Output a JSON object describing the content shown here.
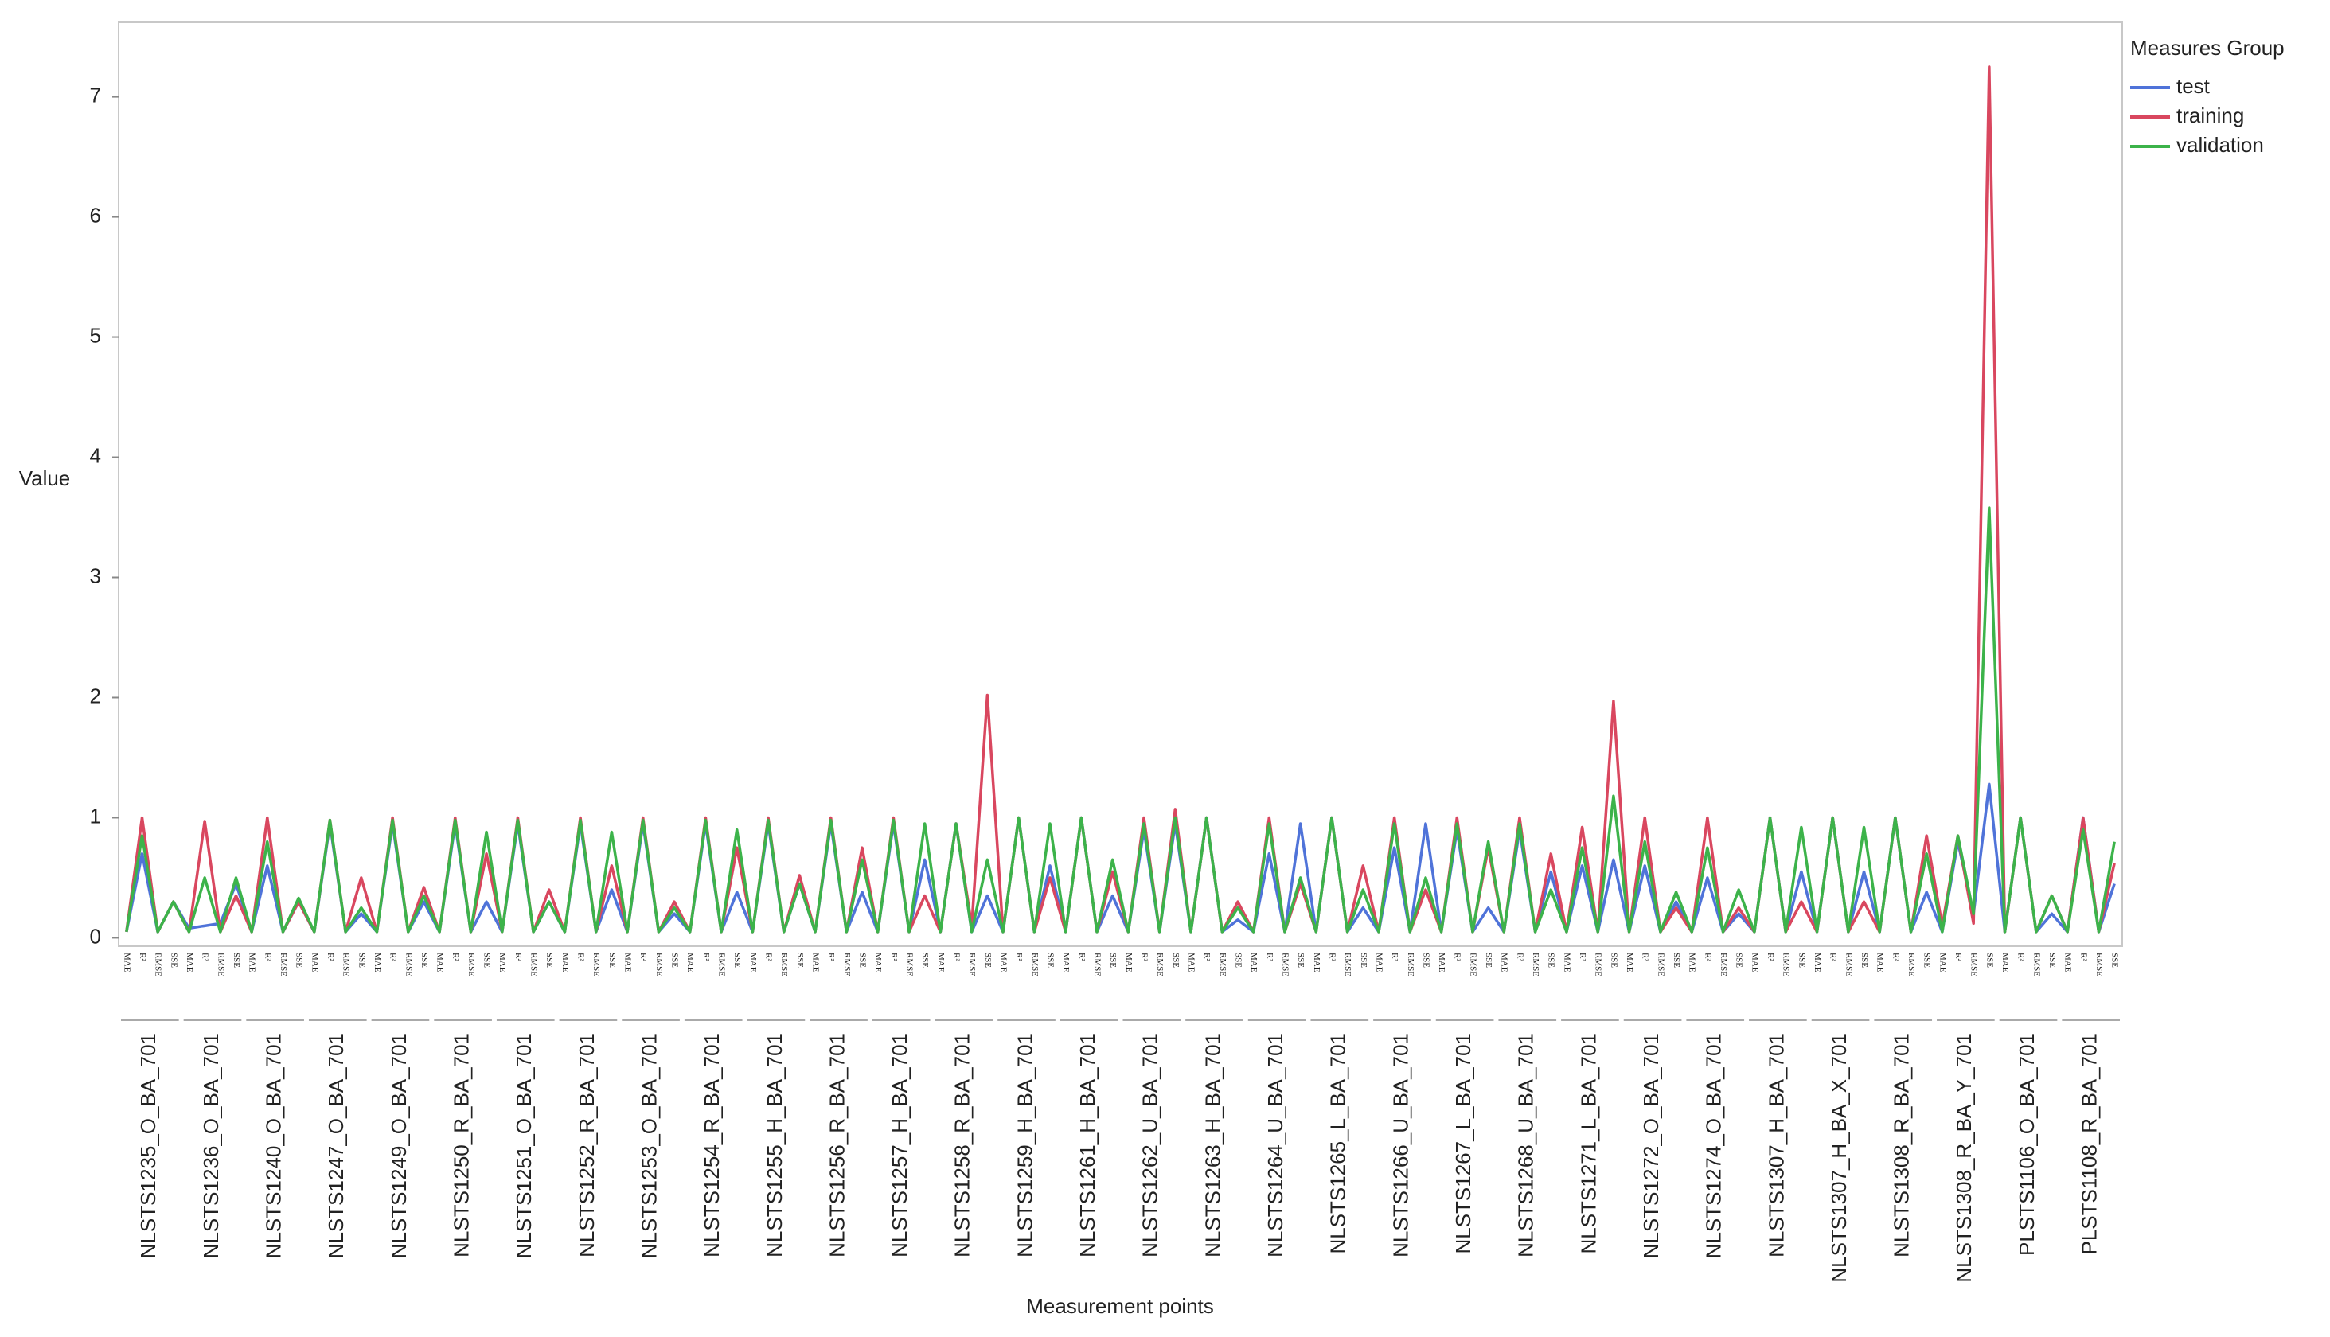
{
  "chart_data": {
    "type": "line",
    "y_label": "Value",
    "x_label": "Measurement points",
    "legend_title": "Measures Group",
    "legend": "right",
    "groups": [
      "NLSTS1235_O_BA_701",
      "NLSTS1236_O_BA_701",
      "NLSTS1240_O_BA_701",
      "NLSTS1247_O_BA_701",
      "NLSTS1249_O_BA_701",
      "NLSTS1250_R_BA_701",
      "NLSTS1251_O_BA_701",
      "NLSTS1252_R_BA_701",
      "NLSTS1253_O_BA_701",
      "NLSTS1254_R_BA_701",
      "NLSTS1255_H_BA_701",
      "NLSTS1256_R_BA_701",
      "NLSTS1257_H_BA_701",
      "NLSTS1258_R_BA_701",
      "NLSTS1259_H_BA_701",
      "NLSTS1261_H_BA_701",
      "NLSTS1262_U_BA_701",
      "NLSTS1263_H_BA_701",
      "NLSTS1264_U_BA_701",
      "NLSTS1265_L_BA_701",
      "NLSTS1266_U_BA_701",
      "NLSTS1267_L_BA_701",
      "NLSTS1268_U_BA_701",
      "NLSTS1271_L_BA_701",
      "NLSTS1272_O_BA_701",
      "NLSTS1274_O_BA_701",
      "NLSTS1307_H_BA_701",
      "NLSTS1307_H_BA_X_701",
      "NLSTS1308_R_BA_701",
      "NLSTS1308_R_BA_Y_701",
      "PLSTS1106_O_BA_701",
      "PLSTS1108_R_BA_701"
    ],
    "measures": [
      "MAE",
      "R²",
      "RMSE",
      "SSE"
    ],
    "ylim": [
      -0.07,
      7.62
    ],
    "yticks": [
      0,
      1,
      2,
      3,
      4,
      5,
      6,
      7
    ],
    "series": [
      {
        "name": "test",
        "color": "#4f73d9",
        "values": [
          0.05,
          0.7,
          0.05,
          0.3,
          0.08,
          0.1,
          0.12,
          0.45,
          0.05,
          0.6,
          0.05,
          0.3,
          0.05,
          0.95,
          0.05,
          0.2,
          0.05,
          0.95,
          0.05,
          0.3,
          0.05,
          0.95,
          0.05,
          0.3,
          0.05,
          0.95,
          0.05,
          0.3,
          0.05,
          0.95,
          0.05,
          0.4,
          0.05,
          0.95,
          0.05,
          0.2,
          0.05,
          0.95,
          0.05,
          0.38,
          0.05,
          0.95,
          0.05,
          0.45,
          0.05,
          0.95,
          0.05,
          0.38,
          0.05,
          0.95,
          0.05,
          0.65,
          0.05,
          0.95,
          0.05,
          0.35,
          0.05,
          1,
          0.05,
          0.6,
          0.05,
          1,
          0.05,
          0.35,
          0.05,
          0.9,
          0.05,
          0.95,
          0.05,
          1,
          0.05,
          0.15,
          0.05,
          0.7,
          0.05,
          0.95,
          0.05,
          1,
          0.05,
          0.25,
          0.05,
          0.75,
          0.05,
          0.95,
          0.05,
          0.9,
          0.05,
          0.25,
          0.05,
          0.9,
          0.05,
          0.55,
          0.05,
          0.6,
          0.05,
          0.65,
          0.05,
          0.6,
          0.05,
          0.3,
          0.05,
          0.5,
          0.05,
          0.2,
          0.05,
          1,
          0.05,
          0.55,
          0.05,
          1,
          0.05,
          0.55,
          0.05,
          1,
          0.05,
          0.38,
          0.05,
          0.8,
          0.2,
          1.28,
          0.05,
          1,
          0.05,
          0.2,
          0.05,
          1,
          0.05,
          0.45
        ]
      },
      {
        "name": "training",
        "color": "#d9475f",
        "values": [
          0.05,
          1,
          0.05,
          0.3,
          0.05,
          0.97,
          0.05,
          0.35,
          0.05,
          1,
          0.05,
          0.3,
          0.05,
          0.98,
          0.05,
          0.5,
          0.05,
          1,
          0.05,
          0.42,
          0.05,
          1,
          0.05,
          0.7,
          0.05,
          1,
          0.05,
          0.4,
          0.05,
          1,
          0.05,
          0.6,
          0.05,
          1,
          0.05,
          0.3,
          0.05,
          1,
          0.05,
          0.75,
          0.05,
          1,
          0.05,
          0.52,
          0.05,
          1,
          0.05,
          0.75,
          0.05,
          1,
          0.05,
          0.35,
          0.05,
          0.95,
          0.1,
          2.02,
          0.05,
          1,
          0.05,
          0.5,
          0.05,
          1,
          0.05,
          0.55,
          0.05,
          1,
          0.05,
          1.07,
          0.05,
          1,
          0.05,
          0.3,
          0.05,
          1,
          0.05,
          0.45,
          0.05,
          1,
          0.05,
          0.6,
          0.05,
          1,
          0.05,
          0.4,
          0.05,
          1,
          0.05,
          0.75,
          0.05,
          1,
          0.05,
          0.7,
          0.05,
          0.92,
          0.05,
          1.97,
          0.05,
          1,
          0.05,
          0.25,
          0.05,
          1,
          0.05,
          0.25,
          0.05,
          1,
          0.05,
          0.3,
          0.05,
          1,
          0.05,
          0.3,
          0.05,
          1,
          0.05,
          0.85,
          0.1,
          0.85,
          0.12,
          7.25,
          0.05,
          1,
          0.05,
          0.35,
          0.05,
          1,
          0.05,
          0.62
        ]
      },
      {
        "name": "validation",
        "color": "#3cb34a",
        "values": [
          0.05,
          0.85,
          0.05,
          0.3,
          0.05,
          0.5,
          0.05,
          0.5,
          0.05,
          0.8,
          0.05,
          0.33,
          0.05,
          0.98,
          0.05,
          0.25,
          0.05,
          0.98,
          0.05,
          0.35,
          0.05,
          0.98,
          0.05,
          0.88,
          0.05,
          0.98,
          0.05,
          0.3,
          0.05,
          0.98,
          0.05,
          0.88,
          0.05,
          0.98,
          0.05,
          0.25,
          0.05,
          0.98,
          0.05,
          0.9,
          0.05,
          0.98,
          0.05,
          0.45,
          0.05,
          0.98,
          0.05,
          0.65,
          0.05,
          0.98,
          0.05,
          0.95,
          0.05,
          0.95,
          0.05,
          0.65,
          0.05,
          1,
          0.05,
          0.95,
          0.05,
          1,
          0.05,
          0.65,
          0.05,
          0.95,
          0.05,
          1,
          0.05,
          1,
          0.05,
          0.25,
          0.05,
          0.95,
          0.05,
          0.5,
          0.05,
          1,
          0.05,
          0.4,
          0.05,
          0.95,
          0.05,
          0.5,
          0.05,
          0.95,
          0.05,
          0.8,
          0.05,
          0.95,
          0.05,
          0.4,
          0.05,
          0.75,
          0.05,
          1.18,
          0.05,
          0.8,
          0.05,
          0.38,
          0.05,
          0.75,
          0.05,
          0.4,
          0.05,
          1,
          0.05,
          0.92,
          0.05,
          1,
          0.05,
          0.92,
          0.05,
          1,
          0.05,
          0.7,
          0.05,
          0.85,
          0.2,
          3.58,
          0.05,
          1,
          0.05,
          0.35,
          0.05,
          0.9,
          0.05,
          0.8
        ]
      }
    ]
  }
}
